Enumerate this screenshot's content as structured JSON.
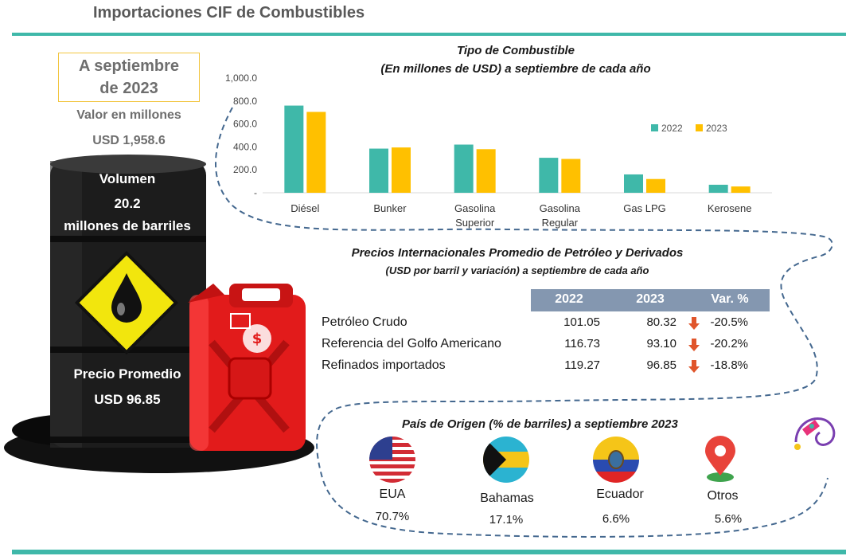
{
  "header": {
    "title": "Importaciones CIF de Combustibles"
  },
  "summary": {
    "date_line1": "A septiembre",
    "date_line2": "de 2023",
    "value_label": "Valor en millones",
    "value": "USD 1,958.6",
    "volume_label": "Volumen",
    "volume_value": "20.2",
    "volume_unit": "millones de barriles",
    "price_label": "Precio Promedio",
    "price_value": "USD 96.85"
  },
  "chart_data": {
    "type": "bar",
    "title": "Tipo de Combustible",
    "subtitle": "(En millones de USD) a septiembre de cada año",
    "categories": [
      "Diésel",
      "Bunker",
      "Gasolina Superior",
      "Gasolina Regular",
      "Gas LPG",
      "Kerosene"
    ],
    "category_lines": [
      [
        "Diésel"
      ],
      [
        "Bunker"
      ],
      [
        "Gasolina",
        "Superior"
      ],
      [
        "Gasolina",
        "Regular"
      ],
      [
        "Gas LPG"
      ],
      [
        "Kerosene"
      ]
    ],
    "series": [
      {
        "name": "2022",
        "color": "#3fb8a9",
        "values": [
          760,
          385,
          420,
          305,
          160,
          70
        ]
      },
      {
        "name": "2023",
        "color": "#ffc000",
        "values": [
          705,
          395,
          380,
          295,
          120,
          55
        ]
      }
    ],
    "yticks": [
      "1,000.0",
      "800.0",
      "600.0",
      "400.0",
      "200.0",
      "-"
    ],
    "ylim": [
      0,
      1000
    ],
    "legend_position": "right"
  },
  "prices": {
    "title": "Precios Internacionales Promedio de Petróleo y Derivados",
    "subtitle": "(USD por barril  y variación)  a septiembre  de cada  año",
    "columns": [
      "2022",
      "2023",
      "Var. %"
    ],
    "rows": [
      {
        "label": "Petróleo Crudo",
        "v2022": "101.05",
        "v2023": "80.32",
        "var": "-20.5%"
      },
      {
        "label": "Referencia del Golfo Americano",
        "v2022": "116.73",
        "v2023": "93.10",
        "var": "-20.2%"
      },
      {
        "label": "Refinados importados",
        "v2022": "119.27",
        "v2023": "96.85",
        "var": "-18.8%"
      }
    ],
    "arrow_color": "#e0552b"
  },
  "origin": {
    "title": "País de Origen (% de barriles) a septiembre 2023",
    "countries": [
      {
        "name": "EUA",
        "pct": "70.7%",
        "icon": "usa-flag-icon"
      },
      {
        "name": "Bahamas",
        "pct": "17.1%",
        "icon": "bahamas-flag-icon"
      },
      {
        "name": "Ecuador",
        "pct": "6.6%",
        "icon": "ecuador-flag-icon"
      },
      {
        "name": "Otros",
        "pct": "5.6%",
        "icon": "map-pin-icon"
      }
    ]
  },
  "colors": {
    "accent": "#3fb8a9",
    "gold": "#ffc000",
    "table_header": "#8497b0",
    "dashed": "#44688f"
  }
}
